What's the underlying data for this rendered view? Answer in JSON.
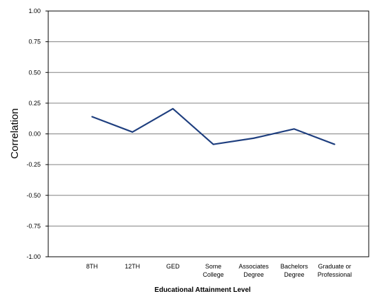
{
  "chart_data": {
    "type": "line",
    "categories": [
      [
        "8TH"
      ],
      [
        "12TH"
      ],
      [
        "GED"
      ],
      [
        "Some",
        "College"
      ],
      [
        "Associates",
        "Degree"
      ],
      [
        "Bachelors",
        "Degree"
      ],
      [
        "Graduate or",
        "Professional"
      ]
    ],
    "series": [
      {
        "values": [
          0.14,
          0.015,
          0.205,
          -0.085,
          -0.035,
          0.04,
          -0.085
        ],
        "color": "#1f3f7f"
      }
    ],
    "xlabel": "Educational Attainment Level",
    "ylabel": "Correlation",
    "ylim": [
      -1.0,
      1.0
    ],
    "yticks": [
      "1.00",
      "0.75",
      "0.50",
      "0.25",
      "0.00",
      "-0.25",
      "-0.50",
      "-0.75",
      "-1.00"
    ],
    "grid": true,
    "legend": "none",
    "colors": {
      "grid": "#808080",
      "axis": "#000000",
      "line": "#1f3f7f"
    }
  }
}
